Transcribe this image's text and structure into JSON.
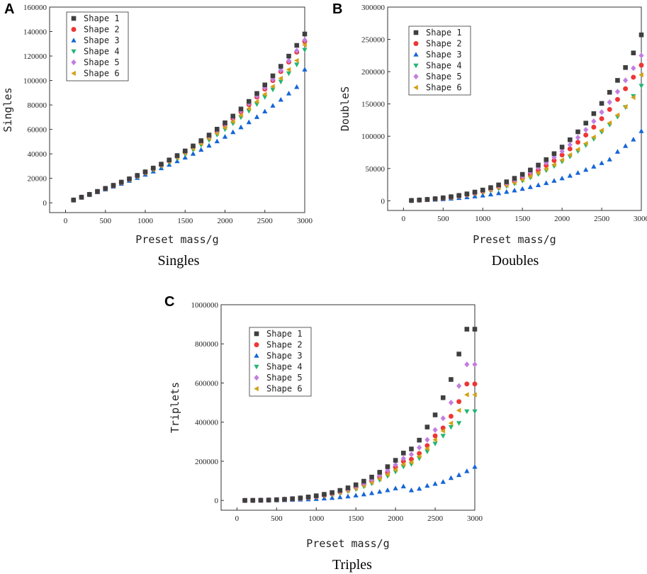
{
  "chart_data": [
    {
      "id": "A",
      "type": "scatter",
      "panel_label": "A",
      "caption": "Singles",
      "xlabel": "Preset mass/g",
      "ylabel": "Singles",
      "xlim": [
        -200,
        3000
      ],
      "ylim": [
        -8000,
        160000
      ],
      "x_ticks": [
        0,
        500,
        1000,
        1500,
        2000,
        2500,
        3000
      ],
      "y_ticks": [
        0,
        20000,
        40000,
        60000,
        80000,
        100000,
        120000,
        140000,
        160000
      ],
      "legend_position": "top-left",
      "x": [
        100,
        200,
        300,
        400,
        500,
        600,
        700,
        800,
        900,
        1000,
        1100,
        1200,
        1300,
        1400,
        1500,
        1600,
        1700,
        1800,
        1900,
        2000,
        2100,
        2200,
        2300,
        2400,
        2500,
        2600,
        2700,
        2800,
        2900,
        3000
      ],
      "series": [
        {
          "name": "Shape 1",
          "marker": "square",
          "color": "#3f3f3f",
          "values": [
            2300,
            4600,
            6900,
            9300,
            11800,
            14300,
            16900,
            19600,
            22400,
            25300,
            28400,
            31600,
            35000,
            38600,
            42400,
            46500,
            50800,
            55400,
            60200,
            65400,
            70900,
            76700,
            82900,
            89400,
            96400,
            103800,
            111600,
            119900,
            128700,
            138000
          ]
        },
        {
          "name": "Shape 2",
          "marker": "circle",
          "color": "#ee3535",
          "values": [
            2270,
            4530,
            6800,
            9150,
            11600,
            14050,
            16600,
            19250,
            22000,
            24850,
            27850,
            30950,
            34250,
            37750,
            41450,
            45400,
            49550,
            53950,
            58650,
            63600,
            68850,
            74400,
            80250,
            86450,
            93000,
            99950,
            107300,
            115050,
            123200,
            131800
          ]
        },
        {
          "name": "Shape 3",
          "marker": "triangle-up",
          "color": "#1565d8",
          "values": [
            2150,
            4300,
            6480,
            8700,
            10950,
            13250,
            15600,
            18000,
            20450,
            23000,
            25600,
            28300,
            31100,
            34000,
            37000,
            40150,
            43400,
            46800,
            50300,
            54000,
            57800,
            61800,
            65900,
            70200,
            74700,
            79400,
            84300,
            89400,
            94700,
            109000
          ]
        },
        {
          "name": "Shape 4",
          "marker": "triangle-down",
          "color": "#22b573",
          "values": [
            2220,
            4440,
            6670,
            8950,
            11300,
            13700,
            16200,
            18750,
            21400,
            24100,
            26950,
            29950,
            33050,
            36300,
            39750,
            43400,
            47250,
            51300,
            55600,
            60100,
            64850,
            69850,
            75100,
            80600,
            86450,
            92550,
            99000,
            105800,
            112950,
            125000
          ]
        },
        {
          "name": "Shape 5",
          "marker": "diamond",
          "color": "#c27ee0",
          "values": [
            2290,
            4580,
            6880,
            9250,
            11700,
            14200,
            16800,
            19500,
            22300,
            25200,
            28250,
            31450,
            34850,
            38400,
            42150,
            46150,
            50350,
            54800,
            59500,
            64500,
            69750,
            75300,
            81200,
            87400,
            94000,
            101000,
            108350,
            116100,
            124300,
            133000
          ]
        },
        {
          "name": "Shape 6",
          "marker": "triangle-left",
          "color": "#d4a017",
          "values": [
            2240,
            4480,
            6740,
            9050,
            11450,
            13900,
            16400,
            19000,
            21700,
            24500,
            27400,
            30450,
            33650,
            37000,
            40550,
            44300,
            48250,
            52400,
            56800,
            61450,
            66350,
            71500,
            76950,
            82700,
            88750,
            95100,
            101800,
            108850,
            116300,
            129000
          ]
        }
      ]
    },
    {
      "id": "B",
      "type": "scatter",
      "panel_label": "B",
      "caption": "Doubles",
      "xlabel": "Preset mass/g",
      "ylabel": "DoubleS",
      "xlim": [
        -200,
        3000
      ],
      "ylim": [
        -15000,
        300000
      ],
      "x_ticks": [
        0,
        500,
        1000,
        1500,
        2000,
        2500,
        3000
      ],
      "y_ticks": [
        0,
        50000,
        100000,
        150000,
        200000,
        250000,
        300000
      ],
      "legend_position": "top-left",
      "x": [
        100,
        200,
        300,
        400,
        500,
        600,
        700,
        800,
        900,
        1000,
        1100,
        1200,
        1300,
        1400,
        1500,
        1600,
        1700,
        1800,
        1900,
        2000,
        2100,
        2200,
        2300,
        2400,
        2500,
        2600,
        2700,
        2800,
        2900,
        3000
      ],
      "series": [
        {
          "name": "Shape 1",
          "marker": "square",
          "color": "#3f3f3f",
          "values": [
            500,
            1200,
            2100,
            3200,
            4600,
            6300,
            8300,
            10700,
            13500,
            16700,
            20400,
            24600,
            29400,
            34800,
            40900,
            47700,
            55300,
            63700,
            73000,
            83200,
            94500,
            106800,
            120300,
            135000,
            150800,
            168000,
            186500,
            206400,
            229000,
            257000
          ]
        },
        {
          "name": "Shape 2",
          "marker": "circle",
          "color": "#ee3535",
          "values": [
            450,
            1050,
            1850,
            2850,
            4050,
            5550,
            7300,
            9400,
            11800,
            14600,
            17800,
            21400,
            25500,
            30100,
            35300,
            41100,
            47500,
            54600,
            62400,
            71000,
            80400,
            90700,
            101800,
            114000,
            127200,
            141500,
            157000,
            173600,
            191400,
            210000
          ]
        },
        {
          "name": "Shape 3",
          "marker": "triangle-up",
          "color": "#1565d8",
          "values": [
            300,
            700,
            1200,
            1800,
            2550,
            3400,
            4400,
            5550,
            6850,
            8300,
            9950,
            11800,
            13850,
            16100,
            18600,
            21300,
            24300,
            27500,
            31000,
            34800,
            38900,
            43300,
            48000,
            53000,
            58400,
            64100,
            76000,
            85000,
            95000,
            108000
          ]
        },
        {
          "name": "Shape 4",
          "marker": "triangle-down",
          "color": "#22b573",
          "values": [
            420,
            980,
            1720,
            2650,
            3750,
            5100,
            6700,
            8550,
            10700,
            13150,
            15950,
            19100,
            22650,
            26600,
            31000,
            35900,
            41300,
            47200,
            53700,
            60800,
            68500,
            76900,
            86000,
            95800,
            106400,
            117800,
            130000,
            145000,
            162000,
            178000
          ]
        },
        {
          "name": "Shape 5",
          "marker": "diamond",
          "color": "#c27ee0",
          "values": [
            480,
            1150,
            2000,
            3050,
            4350,
            5950,
            7850,
            10100,
            12700,
            15700,
            19100,
            23000,
            27400,
            32400,
            38000,
            44200,
            51100,
            58800,
            67300,
            76600,
            86800,
            97900,
            110000,
            123100,
            137300,
            152600,
            169000,
            186600,
            205400,
            225000
          ]
        },
        {
          "name": "Shape 6",
          "marker": "triangle-left",
          "color": "#d4a017",
          "values": [
            440,
            1020,
            1800,
            2760,
            3920,
            5330,
            7000,
            8960,
            11230,
            13830,
            16780,
            20100,
            23820,
            27960,
            32550,
            37620,
            43200,
            49310,
            55980,
            63230,
            71090,
            79590,
            88750,
            98600,
            109200,
            120500,
            132700,
            145800,
            160000,
            195000
          ]
        }
      ]
    },
    {
      "id": "C",
      "type": "scatter",
      "panel_label": "C",
      "caption": "Triples",
      "xlabel": "Preset mass/g",
      "ylabel": "Triplets",
      "xlim": [
        -200,
        3000
      ],
      "ylim": [
        -50000,
        1000000
      ],
      "x_ticks": [
        0,
        500,
        1000,
        1500,
        2000,
        2500,
        3000
      ],
      "y_ticks": [
        0,
        200000,
        400000,
        600000,
        800000,
        1000000
      ],
      "legend_position": "top-left",
      "x": [
        100,
        200,
        300,
        400,
        500,
        600,
        700,
        800,
        900,
        1000,
        1100,
        1200,
        1300,
        1400,
        1500,
        1600,
        1700,
        1800,
        1900,
        2000,
        2100,
        2200,
        2300,
        2400,
        2500,
        2600,
        2700,
        2800,
        2900,
        3000
      ],
      "series": [
        {
          "name": "Shape 1",
          "marker": "square",
          "color": "#3f3f3f",
          "values": [
            100,
            400,
            1000,
            2000,
            3600,
            5800,
            8800,
            12700,
            17600,
            23700,
            31200,
            40300,
            51300,
            64400,
            79900,
            98100,
            119400,
            144000,
            172500,
            205000,
            242000,
            263000,
            308000,
            375000,
            437000,
            525000,
            618000,
            748000,
            875000,
            875000
          ]
        },
        {
          "name": "Shape 2",
          "marker": "circle",
          "color": "#ee3535",
          "values": [
            90,
            350,
            860,
            1700,
            3000,
            4900,
            7400,
            10700,
            14800,
            20000,
            26400,
            34100,
            43300,
            54300,
            67200,
            82300,
            99800,
            120000,
            143200,
            169700,
            199700,
            210000,
            240000,
            280000,
            330000,
            370000,
            430000,
            505000,
            595000,
            595000
          ]
        },
        {
          "name": "Shape 3",
          "marker": "triangle-up",
          "color": "#1565d8",
          "values": [
            40,
            150,
            370,
            720,
            1250,
            2000,
            3000,
            4300,
            5900,
            7900,
            10300,
            13200,
            16700,
            20800,
            25600,
            31100,
            37400,
            44600,
            52700,
            61800,
            72000,
            52000,
            60000,
            75000,
            85000,
            95000,
            115000,
            130000,
            150000,
            172000
          ]
        },
        {
          "name": "Shape 4",
          "marker": "triangle-down",
          "color": "#22b573",
          "values": [
            80,
            310,
            760,
            1500,
            2650,
            4300,
            6500,
            9400,
            13000,
            17500,
            23100,
            29800,
            37800,
            47300,
            58500,
            71600,
            86800,
            104300,
            124300,
            147000,
            172700,
            185000,
            215000,
            250000,
            290000,
            330000,
            375000,
            395000,
            455000,
            455000
          ]
        },
        {
          "name": "Shape 5",
          "marker": "diamond",
          "color": "#c27ee0",
          "values": [
            95,
            380,
            930,
            1850,
            3250,
            5300,
            8000,
            11500,
            16000,
            21500,
            28300,
            36600,
            46400,
            58100,
            71900,
            88100,
            106900,
            128700,
            153700,
            182200,
            214500,
            235000,
            270000,
            310000,
            360000,
            420000,
            500000,
            585000,
            695000,
            695000
          ]
        },
        {
          "name": "Shape 6",
          "marker": "triangle-left",
          "color": "#d4a017",
          "values": [
            85,
            330,
            810,
            1600,
            2820,
            4580,
            6920,
            9970,
            13850,
            18670,
            24580,
            31700,
            40200,
            50200,
            62000,
            75800,
            91900,
            110500,
            131900,
            156200,
            183800,
            195000,
            225000,
            265000,
            310000,
            355000,
            395000,
            460000,
            540000,
            540000
          ]
        }
      ]
    }
  ]
}
